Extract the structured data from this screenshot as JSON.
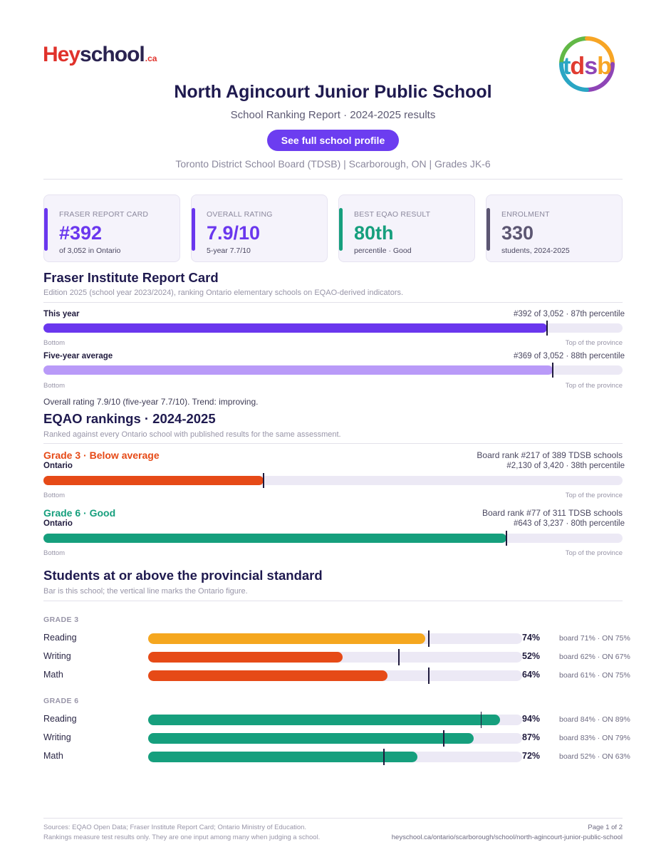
{
  "brand": {
    "hey": "Hey",
    "school": "school",
    "ca": ".ca"
  },
  "board_logo": {
    "text": "tdsb",
    "colors": [
      "#2aa6c4",
      "#e03c31",
      "#8e45b6",
      "#f7a525",
      "#62b846"
    ]
  },
  "header": {
    "title": "North Agincourt Junior Public School",
    "subtitle": "School Ranking Report  ·  2024-2025 results",
    "cta_label": "See full school profile",
    "meta": "Toronto District School Board (TDSB)  |  Scarborough, ON  |  Grades JK-6"
  },
  "kpis": [
    {
      "label": "FRASER REPORT CARD",
      "value": "#392",
      "sub": "of 3,052 in Ontario",
      "color": "#6a37ee"
    },
    {
      "label": "OVERALL RATING",
      "value": "7.9/10",
      "sub": "5-year 7.7/10",
      "color": "#6a37ee"
    },
    {
      "label": "BEST EQAO RESULT",
      "value": "80th",
      "sub": "percentile  ·  Good",
      "color": "#169f7d"
    },
    {
      "label": "ENROLMENT",
      "value": "330",
      "sub": "students, 2024-2025",
      "color": "#5c5672"
    }
  ],
  "fraser": {
    "title": "Fraser Institute Report Card",
    "note": "Edition 2025 (school year 2023/2024), ranking Ontario elementary schools on EQAO-derived indicators.",
    "rows": [
      {
        "label": "This year",
        "right": "#392 of 3,052  ·  87th percentile",
        "percentile": 87,
        "color": "#6a37ee"
      },
      {
        "label": "Five-year average",
        "right": "#369 of 3,052  ·  88th percentile",
        "percentile": 88,
        "color": "#b99af8"
      }
    ],
    "axis_left": "Bottom",
    "axis_right": "Top of the province",
    "summary": "Overall rating 7.9/10 (five-year 7.7/10). Trend: improving."
  },
  "eqao": {
    "title": "EQAO rankings  ·  2024-2025",
    "note": "Ranked against every Ontario school with published results for the same assessment.",
    "grades": [
      {
        "heading": "Grade 3  ·  Below average",
        "board_rank": "Board rank #217 of 389 TDSB schools",
        "scope": "Ontario",
        "right": "#2,130 of 3,420  ·  38th percentile",
        "percentile": 38,
        "color": "#e64a17"
      },
      {
        "heading": "Grade 6  ·  Good",
        "board_rank": "Board rank #77 of 311 TDSB schools",
        "scope": "Ontario",
        "right": "#643 of 3,237  ·  80th percentile",
        "percentile": 80,
        "color": "#169f7d"
      }
    ],
    "axis_left": "Bottom",
    "axis_right": "Top of the province"
  },
  "standard": {
    "title": "Students at or above the provincial standard",
    "note": "Bar is this school; the vertical line marks the Ontario figure.",
    "groups": [
      {
        "label": "GRADE 3",
        "rows": [
          {
            "subject": "Reading",
            "school": 74,
            "pct": "74%",
            "ontario": 75,
            "compare": "board 71%  ·  ON 75%",
            "color": "#f5a71f"
          },
          {
            "subject": "Writing",
            "school": 52,
            "pct": "52%",
            "ontario": 67,
            "compare": "board 62%  ·  ON 67%",
            "color": "#e64a17"
          },
          {
            "subject": "Math",
            "school": 64,
            "pct": "64%",
            "ontario": 75,
            "compare": "board 61%  ·  ON 75%",
            "color": "#e64a17"
          }
        ]
      },
      {
        "label": "GRADE 6",
        "rows": [
          {
            "subject": "Reading",
            "school": 94,
            "pct": "94%",
            "ontario": 89,
            "compare": "board 84%  ·  ON 89%",
            "color": "#169f7d"
          },
          {
            "subject": "Writing",
            "school": 87,
            "pct": "87%",
            "ontario": 79,
            "compare": "board 83%  ·  ON 79%",
            "color": "#169f7d"
          },
          {
            "subject": "Math",
            "school": 72,
            "pct": "72%",
            "ontario": 63,
            "compare": "board 52%  ·  ON 63%",
            "color": "#169f7d"
          }
        ]
      }
    ]
  },
  "footer": {
    "sources": "Sources: EQAO Open Data; Fraser Institute Report Card; Ontario Ministry of Education.",
    "disclaimer": "Rankings measure test results only. They are one input among many when judging a school.",
    "page": "Page 1 of 2",
    "url": "heyschool.ca/ontario/scarborough/school/north-agincourt-junior-public-school"
  }
}
